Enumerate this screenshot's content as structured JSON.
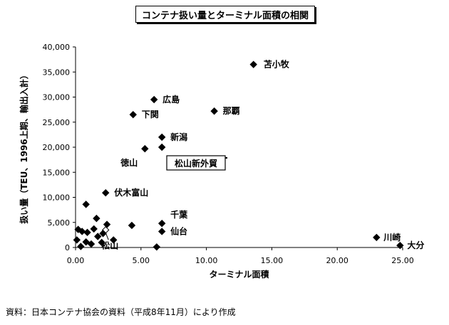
{
  "chart_data": {
    "type": "scatter",
    "title": "コンテナ扱い量とターミナル面積の相関",
    "xlabel": "ターミナル面積",
    "ylabel": "扱い量（TEU、1996上期、輸出入計）",
    "xlim": [
      0,
      25
    ],
    "ylim": [
      0,
      40000
    ],
    "x_ticks": [
      "0.00",
      "5.00",
      "10.00",
      "15.00",
      "20.00",
      "25.00"
    ],
    "y_ticks": [
      "0",
      "5,000",
      "10,000",
      "15,000",
      "20,000",
      "25,000",
      "30,000",
      "35,000",
      "40,000"
    ],
    "grid": false,
    "marker": "diamond",
    "points": [
      {
        "x": 13.6,
        "y": 36500,
        "label": "苫小牧"
      },
      {
        "x": 6.0,
        "y": 29500,
        "label": "広島"
      },
      {
        "x": 10.6,
        "y": 27200,
        "label": "那覇"
      },
      {
        "x": 4.4,
        "y": 26500,
        "label": "下関"
      },
      {
        "x": 6.6,
        "y": 22000,
        "label": "新潟"
      },
      {
        "x": 5.3,
        "y": 19700,
        "label": "徳山"
      },
      {
        "x": 6.6,
        "y": 20000,
        "label": "松山新外貿"
      },
      {
        "x": 2.3,
        "y": 10900,
        "label": "伏木富山"
      },
      {
        "x": 6.6,
        "y": 4800,
        "label": "千葉"
      },
      {
        "x": 6.6,
        "y": 3200,
        "label": "仙台"
      },
      {
        "x": 23.0,
        "y": 2000,
        "label": "川崎"
      },
      {
        "x": 24.8,
        "y": 400,
        "label": "大分"
      },
      {
        "x": 2.3,
        "y": 3500,
        "label": "松山"
      },
      {
        "x": 0.8,
        "y": 8600,
        "label": ""
      },
      {
        "x": 1.6,
        "y": 5800,
        "label": ""
      },
      {
        "x": 2.4,
        "y": 4600,
        "label": ""
      },
      {
        "x": 4.3,
        "y": 4400,
        "label": ""
      },
      {
        "x": 0.2,
        "y": 3600,
        "label": ""
      },
      {
        "x": 0.5,
        "y": 3200,
        "label": ""
      },
      {
        "x": 0.9,
        "y": 3000,
        "label": ""
      },
      {
        "x": 1.4,
        "y": 3700,
        "label": ""
      },
      {
        "x": 2.1,
        "y": 2800,
        "label": ""
      },
      {
        "x": 1.7,
        "y": 2200,
        "label": ""
      },
      {
        "x": 0.1,
        "y": 1500,
        "label": ""
      },
      {
        "x": 0.8,
        "y": 1100,
        "label": ""
      },
      {
        "x": 1.2,
        "y": 700,
        "label": ""
      },
      {
        "x": 2.9,
        "y": 1500,
        "label": ""
      },
      {
        "x": 2.0,
        "y": 1000,
        "label": ""
      },
      {
        "x": 0.4,
        "y": 200,
        "label": ""
      },
      {
        "x": 6.2,
        "y": 100,
        "label": ""
      }
    ]
  },
  "source": "資料：日本コンテナ協会の資料（平成8年11月）により作成"
}
